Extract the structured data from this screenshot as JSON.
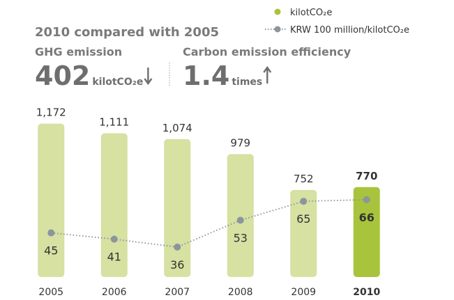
{
  "chart_data": {
    "type": "bar_line",
    "headline": {
      "title": "2010 compared with 2005",
      "left_label": "GHG emission",
      "left_value": 402,
      "left_unit": "kilotCO₂e",
      "right_label": "Carbon emission efficiency",
      "right_value": 1.4,
      "right_unit": "times"
    },
    "categories": [
      "2005",
      "2006",
      "2007",
      "2008",
      "2009",
      "2010"
    ],
    "highlight": "2010",
    "series": [
      {
        "name": "kilotCO₂e",
        "type": "bar",
        "color": "#a8c43c",
        "colors": [
          "#d6e1a2",
          "#d6e1a2",
          "#d6e1a2",
          "#d6e1a2",
          "#d6e1a2",
          "#a8c43c"
        ],
        "values": [
          1172,
          1111,
          1074,
          979,
          752,
          770
        ],
        "value_labels": [
          "1,172",
          "1,111",
          "1,074",
          "979",
          "752",
          "770"
        ]
      },
      {
        "name": "KRW 100 million/kilotCO₂e",
        "type": "line",
        "axis": "y2",
        "color": "#8c959c",
        "values": [
          45,
          41,
          36,
          53,
          65,
          66
        ]
      }
    ],
    "ylim": [
      200,
      1250
    ],
    "y2lim": [
      17,
      122
    ]
  }
}
